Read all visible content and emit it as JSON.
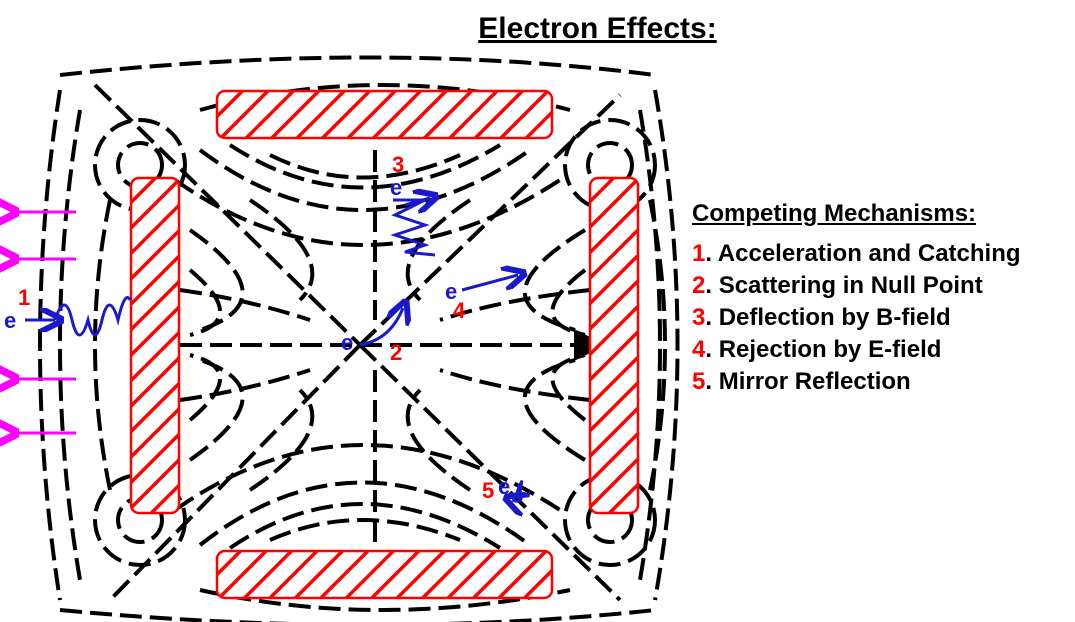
{
  "title": "Electron Effects:",
  "legend": {
    "heading": "Competing Mechanisms:",
    "items": [
      {
        "num": "1",
        "text": ". Acceleration and Catching"
      },
      {
        "num": "2",
        "text": ". Scattering in Null Point"
      },
      {
        "num": "3",
        "text": ". Deflection by B-field"
      },
      {
        "num": "4",
        "text": ". Rejection by E-field"
      },
      {
        "num": "5",
        "text": ". Mirror Reflection"
      }
    ]
  },
  "markers": {
    "m1": "1",
    "m2": "2",
    "m3": "3",
    "m4": "4",
    "m5": "5",
    "electron": "e"
  },
  "colors": {
    "coil_stroke": "#ff0000",
    "electron_path": "#1a1acc",
    "arrow_magenta": "#ff00ff",
    "field_lines": "#000000"
  }
}
